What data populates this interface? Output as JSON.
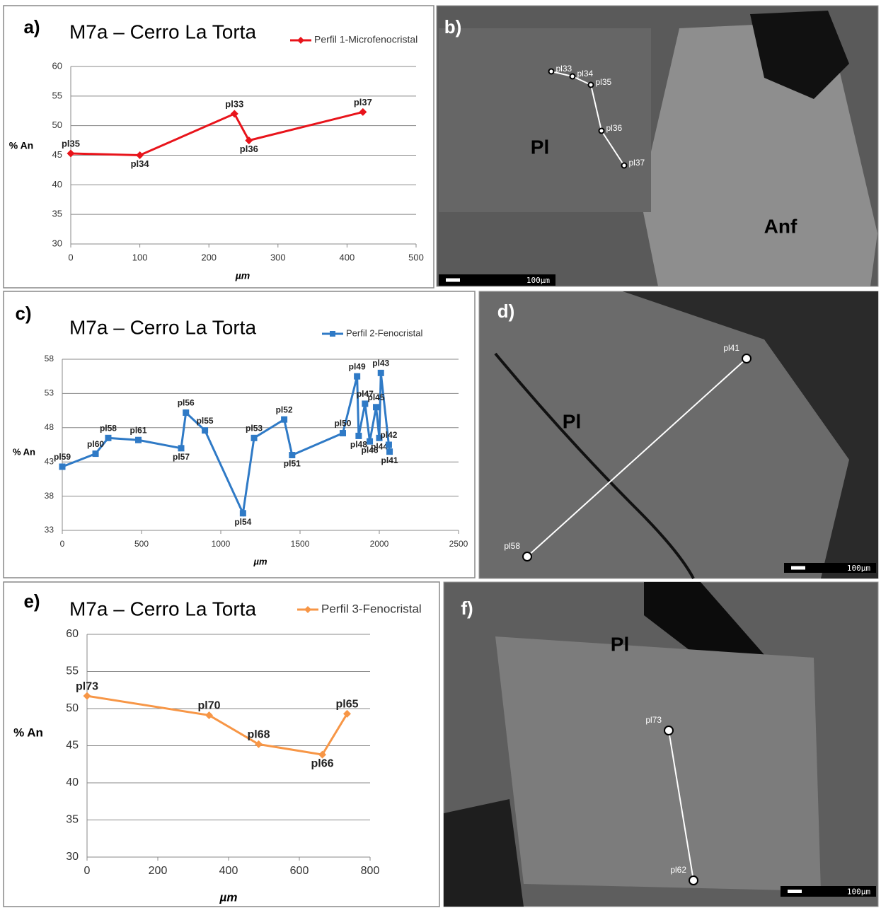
{
  "chart_data": [
    {
      "type": "line",
      "panel": "a)",
      "title": "M7a – Cerro La Torta",
      "xlabel": "µm",
      "ylabel": "% An",
      "xlim": [
        0,
        500
      ],
      "xticks": [
        0,
        100,
        200,
        300,
        400,
        500
      ],
      "ylim": [
        30,
        60
      ],
      "yticks": [
        30,
        35,
        40,
        45,
        50,
        55,
        60
      ],
      "grid": true,
      "marker": "diamond",
      "series": [
        {
          "name": "Perfil 1-Microfenocristal",
          "color": "#e8141b",
          "x": [
            0,
            100,
            237,
            258,
            423
          ],
          "values": [
            45.3,
            45,
            52,
            47.5,
            52.3
          ],
          "point_labels": [
            "pl35",
            "pl34",
            "pl33",
            "pl36",
            "pl37"
          ]
        }
      ]
    },
    {
      "type": "line",
      "panel": "c)",
      "title": "M7a – Cerro La Torta",
      "xlabel": "µm",
      "ylabel": "% An",
      "xlim": [
        0,
        2500
      ],
      "xticks": [
        0,
        500,
        1000,
        1500,
        2000,
        2500
      ],
      "ylim": [
        33,
        58
      ],
      "yticks": [
        33,
        38,
        43,
        48,
        53,
        58
      ],
      "grid": true,
      "marker": "square",
      "series": [
        {
          "name": "Perfil 2-Fenocristal",
          "color": "#2f7ac6",
          "x": [
            0,
            210,
            290,
            480,
            750,
            780,
            900,
            1140,
            1210,
            1400,
            1450,
            1770,
            1860,
            1870,
            1910,
            1940,
            1980,
            2000,
            2010,
            2060,
            2065
          ],
          "values": [
            42.3,
            44.2,
            46.5,
            46.2,
            45,
            50.2,
            47.6,
            35.5,
            46.5,
            49.2,
            44,
            47.2,
            55.5,
            46.8,
            51.5,
            46,
            51,
            46.5,
            56,
            45.5,
            44.5
          ],
          "point_labels": [
            "pl59",
            "pl60",
            "pl58",
            "pl61",
            "pl57",
            "pl56",
            "pl55",
            "pl54",
            "pl53",
            "pl52",
            "pl51",
            "pl50",
            "pl49",
            "pl48",
            "pl47",
            "pl46",
            "pl45",
            "pl44",
            "pl43",
            "pl42",
            "pl41"
          ]
        }
      ]
    },
    {
      "type": "line",
      "panel": "e)",
      "title": "M7a – Cerro La Torta",
      "xlabel": "µm",
      "ylabel": "% An",
      "xlim": [
        0,
        800
      ],
      "xticks": [
        0,
        200,
        400,
        600,
        800
      ],
      "ylim": [
        30,
        60
      ],
      "yticks": [
        30,
        35,
        40,
        45,
        50,
        55,
        60
      ],
      "grid": true,
      "marker": "diamond",
      "series": [
        {
          "name": "Perfil 3-Fenocristal",
          "color": "#f79646",
          "x": [
            0,
            345,
            485,
            665,
            735
          ],
          "values": [
            51.7,
            49.1,
            45.2,
            43.8,
            49.3
          ],
          "point_labels": [
            "pl73",
            "pl70",
            "pl68",
            "pl66",
            "pl65"
          ]
        }
      ]
    }
  ],
  "images": [
    {
      "panel": "b)",
      "annotations": [
        "Pl",
        "Anf"
      ],
      "points": [
        "pl33",
        "pl34",
        "pl35",
        "pl36",
        "pl37"
      ],
      "scale": "100µm"
    },
    {
      "panel": "d)",
      "annotations": [
        "Pl"
      ],
      "points": [
        "pl41",
        "pl58"
      ],
      "scale": "100µm"
    },
    {
      "panel": "f)",
      "annotations": [
        "Pl"
      ],
      "points": [
        "pl73",
        "pl62"
      ],
      "scale": "100µm"
    }
  ]
}
